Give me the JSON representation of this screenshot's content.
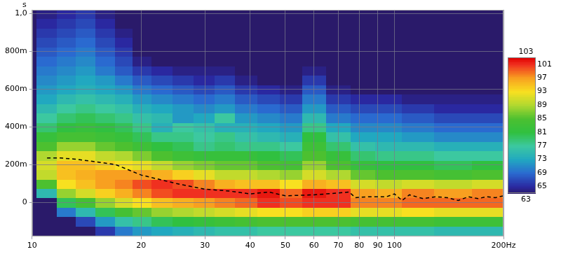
{
  "chart_data": {
    "type": "heatmap",
    "y_label": "s",
    "log": "x",
    "grid": true,
    "xlim": [
      10,
      200
    ],
    "ylim": [
      -0.18,
      1.02
    ],
    "xticks": [
      10,
      20,
      30,
      40,
      50,
      60,
      70,
      80,
      90,
      100,
      {
        "value": 200,
        "label": "200Hz"
      }
    ],
    "yticks": [
      0,
      {
        "value": 0.2,
        "label": "200m"
      },
      {
        "value": 0.4,
        "label": "400m"
      },
      {
        "value": 0.6,
        "label": "600m"
      },
      {
        "value": 0.8,
        "label": "800m"
      },
      {
        "value": 1,
        "label": "1,0"
      }
    ],
    "cells": {
      "x": [
        11,
        12.5,
        14,
        16,
        18,
        20,
        23,
        26,
        30,
        34,
        39,
        45,
        52,
        60,
        70,
        82,
        96,
        115,
        145,
        185
      ],
      "y": [
        -0.15,
        -0.1,
        -0.05,
        0,
        0.05,
        0.1,
        0.15,
        0.2,
        0.25,
        0.3,
        0.35,
        0.4,
        0.45,
        0.5,
        0.55,
        0.6,
        0.65,
        0.7,
        0.75,
        0.8,
        0.85,
        0.9,
        0.95,
        1.0
      ],
      "values": [
        [
          63,
          63,
          63,
          63,
          75,
          85,
          90,
          91,
          89,
          85,
          82,
          79,
          77,
          75,
          73,
          72,
          71,
          70,
          69,
          68,
          67,
          66,
          65,
          64
        ],
        [
          63,
          63,
          70,
          80,
          88,
          93,
          95,
          95,
          92,
          88,
          84,
          81,
          79,
          77,
          75,
          73,
          72,
          71,
          70,
          69,
          68,
          67,
          66,
          65
        ],
        [
          63,
          67,
          75,
          84,
          91,
          95,
          96,
          95,
          92,
          88,
          84,
          82,
          80,
          78,
          76,
          74,
          73,
          72,
          71,
          70,
          69,
          68,
          67,
          66
        ],
        [
          66,
          72,
          80,
          88,
          94,
          97,
          97,
          94,
          90,
          86,
          83,
          81,
          79,
          77,
          75,
          73,
          72,
          70,
          69,
          68,
          67,
          66,
          65,
          64
        ],
        [
          70,
          76,
          84,
          91,
          96,
          98,
          97,
          93,
          89,
          85,
          82,
          80,
          78,
          76,
          74,
          72,
          70,
          68,
          67,
          66,
          65,
          64,
          63,
          63
        ],
        [
          72,
          78,
          86,
          93,
          98,
          100,
          97,
          92,
          87,
          83,
          80,
          78,
          76,
          74,
          72,
          70,
          68,
          66,
          64,
          63,
          63,
          63,
          63,
          63
        ],
        [
          73,
          80,
          88,
          95,
          100,
          101,
          96,
          90,
          85,
          81,
          78,
          74,
          75,
          73,
          71,
          69,
          67,
          65,
          63,
          63,
          63,
          63,
          63,
          63
        ],
        [
          74,
          81,
          89,
          96,
          101,
          100,
          94,
          88,
          83,
          80,
          78,
          77,
          72,
          72,
          70,
          68,
          66,
          64,
          63,
          63,
          63,
          63,
          63,
          63
        ],
        [
          75,
          82,
          90,
          97,
          101,
          98,
          92,
          87,
          82,
          78,
          77,
          76,
          73,
          71,
          69,
          67,
          65,
          64,
          63,
          63,
          63,
          63,
          63,
          63
        ],
        [
          76,
          83,
          91,
          98,
          101,
          96,
          90,
          86,
          82,
          79,
          78,
          74,
          77,
          72,
          70,
          68,
          66,
          64,
          63,
          63,
          63,
          63,
          63,
          63
        ],
        [
          76,
          84,
          92,
          99,
          101,
          95,
          90,
          86,
          82,
          78,
          76,
          74,
          72,
          70,
          68,
          66,
          64,
          63,
          63,
          63,
          63,
          63,
          63,
          63
        ],
        [
          77,
          85,
          93,
          101,
          102,
          95,
          89,
          85,
          81,
          78,
          75,
          73,
          71,
          69,
          67,
          65,
          63,
          63,
          63,
          63,
          63,
          63,
          63,
          63
        ],
        [
          77,
          85,
          93,
          100,
          99,
          93,
          88,
          84,
          80,
          77,
          74,
          72,
          70,
          68,
          66,
          64,
          63,
          63,
          63,
          63,
          63,
          63,
          63,
          63
        ],
        [
          77,
          85,
          94,
          101,
          102,
          96,
          91,
          88,
          85,
          83,
          81,
          78,
          75,
          72,
          70,
          68,
          66,
          64,
          63,
          63,
          63,
          63,
          63,
          63
        ],
        [
          77,
          85,
          94,
          101,
          101,
          95,
          89,
          85,
          82,
          79,
          76,
          73,
          70,
          68,
          66,
          64,
          63,
          63,
          63,
          63,
          63,
          63,
          63,
          63
        ],
        [
          76,
          84,
          92,
          98,
          97,
          91,
          86,
          82,
          79,
          76,
          73,
          71,
          69,
          67,
          65,
          63,
          63,
          63,
          63,
          63,
          63,
          63,
          63,
          63
        ],
        [
          76,
          84,
          92,
          98,
          96,
          90,
          85,
          81,
          78,
          75,
          73,
          71,
          69,
          67,
          65,
          63,
          63,
          63,
          63,
          63,
          63,
          63,
          63,
          63
        ],
        [
          76,
          84,
          93,
          99,
          98,
          91,
          85,
          81,
          78,
          75,
          72,
          70,
          68,
          66,
          64,
          63,
          63,
          63,
          63,
          63,
          63,
          63,
          63,
          63
        ],
        [
          75,
          83,
          92,
          99,
          97,
          90,
          84,
          80,
          77,
          74,
          71,
          69,
          67,
          65,
          64,
          63,
          63,
          63,
          63,
          63,
          63,
          63,
          63,
          63
        ],
        [
          75,
          83,
          92,
          99,
          98,
          91,
          85,
          81,
          77,
          74,
          71,
          69,
          67,
          65,
          64,
          63,
          63,
          63,
          63,
          63,
          63,
          63,
          63,
          63
        ]
      ]
    },
    "colorbar": {
      "range": [
        63,
        103
      ],
      "ticks": [
        65,
        69,
        73,
        77,
        81,
        85,
        89,
        93,
        97,
        101
      ]
    },
    "series": [
      {
        "color": "#000000",
        "line_style": "dashed",
        "x": [
          11,
          12,
          13,
          15,
          17,
          20,
          25,
          30,
          35,
          40,
          45,
          50,
          60,
          70,
          75,
          78,
          85,
          95,
          100,
          105,
          110,
          120,
          130,
          140,
          150,
          160,
          170,
          180,
          190,
          200
        ],
        "values": [
          0.235,
          0.235,
          0.23,
          0.215,
          0.2,
          0.145,
          0.1,
          0.07,
          0.06,
          0.045,
          0.055,
          0.035,
          0.04,
          0.05,
          0.055,
          0.025,
          0.03,
          0.03,
          0.045,
          0.01,
          0.04,
          0.02,
          0.03,
          0.025,
          0.01,
          0.03,
          0.02,
          0.03,
          0.025,
          0.035
        ]
      }
    ]
  }
}
